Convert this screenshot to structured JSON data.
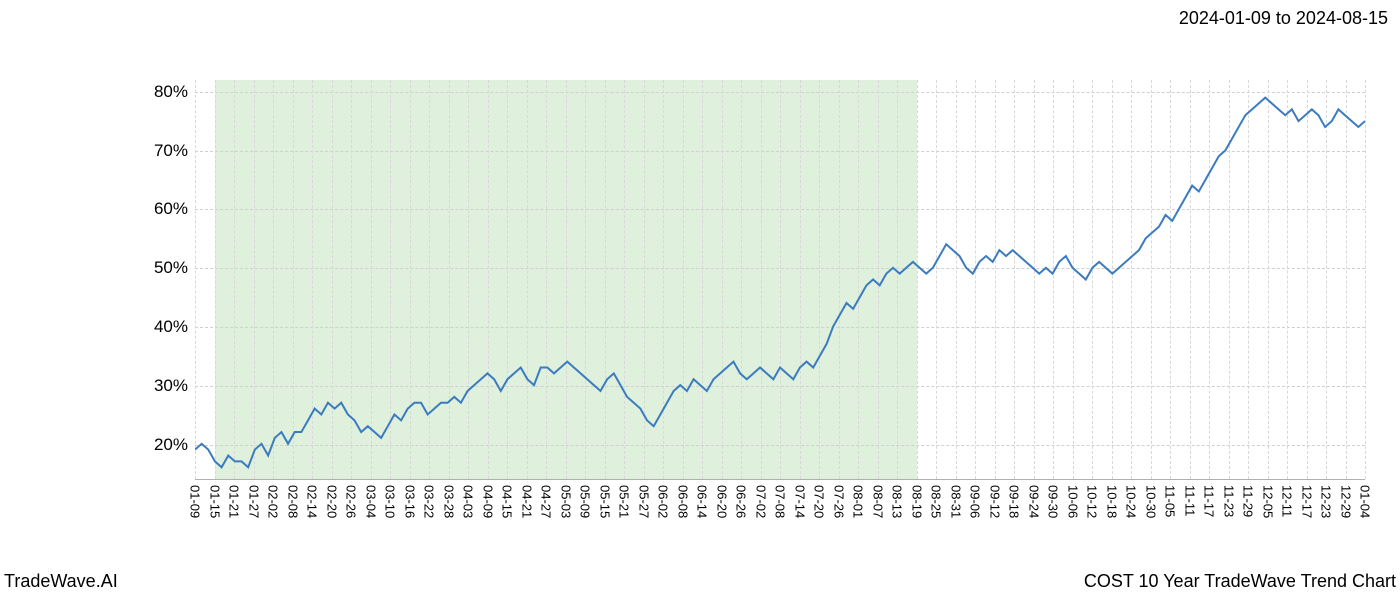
{
  "header": {
    "date_range": "2024-01-09 to 2024-08-15"
  },
  "footer": {
    "brand": "TradeWave.AI",
    "title": "COST 10 Year TradeWave Trend Chart"
  },
  "chart": {
    "type": "line",
    "background_color": "#ffffff",
    "grid_color": "#d0d0d0",
    "line_color": "#3b7bbf",
    "line_width": 2,
    "highlight_color": "#dceed8",
    "highlight_opacity": 0.9,
    "y_axis": {
      "min": 14,
      "max": 82,
      "ticks": [
        20,
        30,
        40,
        50,
        60,
        70,
        80
      ],
      "tick_labels": [
        "20%",
        "30%",
        "40%",
        "50%",
        "60%",
        "70%",
        "80%"
      ],
      "label_fontsize": 17
    },
    "x_axis": {
      "labels": [
        "01-09",
        "01-15",
        "01-21",
        "01-27",
        "02-02",
        "02-08",
        "02-14",
        "02-20",
        "02-26",
        "03-04",
        "03-10",
        "03-16",
        "03-22",
        "03-28",
        "04-03",
        "04-09",
        "04-15",
        "04-21",
        "04-27",
        "05-03",
        "05-09",
        "05-15",
        "05-21",
        "05-27",
        "06-02",
        "06-08",
        "06-14",
        "06-20",
        "06-26",
        "07-02",
        "07-08",
        "07-14",
        "07-20",
        "07-26",
        "08-01",
        "08-07",
        "08-13",
        "08-19",
        "08-25",
        "08-31",
        "09-06",
        "09-12",
        "09-18",
        "09-24",
        "09-30",
        "10-06",
        "10-12",
        "10-18",
        "10-24",
        "10-30",
        "11-05",
        "11-11",
        "11-17",
        "11-23",
        "11-29",
        "12-05",
        "12-11",
        "12-17",
        "12-23",
        "12-29",
        "01-04"
      ],
      "label_fontsize": 13
    },
    "highlight_region": {
      "start_index": 1,
      "end_index": 37
    },
    "series": {
      "values": [
        19,
        20,
        19,
        17,
        16,
        18,
        17,
        17,
        16,
        19,
        20,
        18,
        21,
        22,
        20,
        22,
        22,
        24,
        26,
        25,
        27,
        26,
        27,
        25,
        24,
        22,
        23,
        22,
        21,
        23,
        25,
        24,
        26,
        27,
        27,
        25,
        26,
        27,
        27,
        28,
        27,
        29,
        30,
        31,
        32,
        31,
        29,
        31,
        32,
        33,
        31,
        30,
        33,
        33,
        32,
        33,
        34,
        33,
        32,
        31,
        30,
        29,
        31,
        32,
        30,
        28,
        27,
        26,
        24,
        23,
        25,
        27,
        29,
        30,
        29,
        31,
        30,
        29,
        31,
        32,
        33,
        34,
        32,
        31,
        32,
        33,
        32,
        31,
        33,
        32,
        31,
        33,
        34,
        33,
        35,
        37,
        40,
        42,
        44,
        43,
        45,
        47,
        48,
        47,
        49,
        50,
        49,
        50,
        51,
        50,
        49,
        50,
        52,
        54,
        53,
        52,
        50,
        49,
        51,
        52,
        51,
        53,
        52,
        53,
        52,
        51,
        50,
        49,
        50,
        49,
        51,
        52,
        50,
        49,
        48,
        50,
        51,
        50,
        49,
        50,
        51,
        52,
        53,
        55,
        56,
        57,
        59,
        58,
        60,
        62,
        64,
        63,
        65,
        67,
        69,
        70,
        72,
        74,
        76,
        77,
        78,
        79,
        78,
        77,
        76,
        77,
        75,
        76,
        77,
        76,
        74,
        75,
        77,
        76,
        75,
        74,
        75
      ]
    }
  }
}
